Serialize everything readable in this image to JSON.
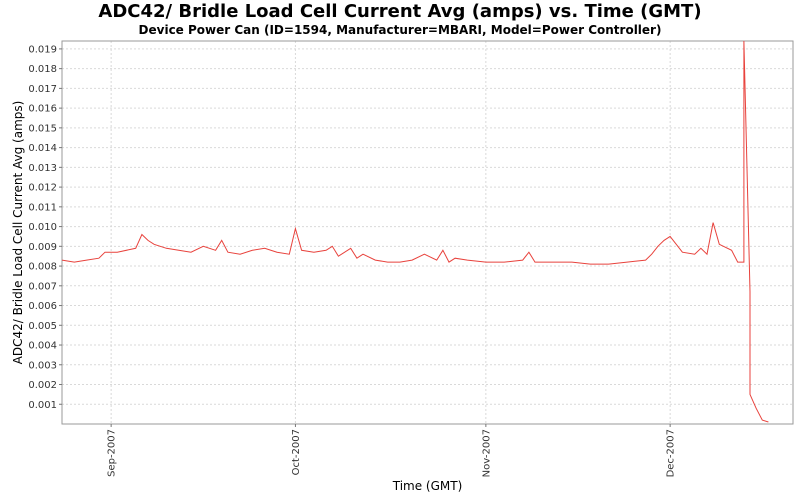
{
  "chart_data": {
    "type": "line",
    "title": "ADC42/ Bridle Load Cell Current Avg (amps) vs. Time (GMT)",
    "subtitle": "Device Power Can (ID=1594, Manufacturer=MBARI, Model=Power Controller)",
    "xlabel": "Time (GMT)",
    "ylabel": "ADC42/ Bridle Load Cell Current Avg (amps)",
    "x_tick_labels": [
      "Sep-2007",
      "Oct-2007",
      "Nov-2007",
      "Dec-2007"
    ],
    "x_tick_dates": [
      "2007-09-01",
      "2007-10-01",
      "2007-11-01",
      "2007-12-01"
    ],
    "xlim": [
      "2007-08-24",
      "2007-12-21"
    ],
    "y_tick_labels": [
      "0.001",
      "0.002",
      "0.003",
      "0.004",
      "0.005",
      "0.006",
      "0.007",
      "0.008",
      "0.009",
      "0.010",
      "0.011",
      "0.012",
      "0.013",
      "0.014",
      "0.015",
      "0.016",
      "0.017",
      "0.018",
      "0.019"
    ],
    "y_ticks": [
      0.001,
      0.002,
      0.003,
      0.004,
      0.005,
      0.006,
      0.007,
      0.008,
      0.009,
      0.01,
      0.011,
      0.012,
      0.013,
      0.014,
      0.015,
      0.016,
      0.017,
      0.018,
      0.019
    ],
    "ylim": [
      0.0,
      0.0194
    ],
    "grid": true,
    "line_color": "#e8423c",
    "series": [
      {
        "x": [
          "2007-08-24",
          "2007-08-26",
          "2007-08-28",
          "2007-08-30",
          "2007-08-31",
          "2007-09-02",
          "2007-09-05",
          "2007-09-06",
          "2007-09-07",
          "2007-09-08",
          "2007-09-10",
          "2007-09-12",
          "2007-09-14",
          "2007-09-16",
          "2007-09-18",
          "2007-09-19",
          "2007-09-20",
          "2007-09-22",
          "2007-09-24",
          "2007-09-26",
          "2007-09-28",
          "2007-09-30",
          "2007-10-01",
          "2007-10-02",
          "2007-10-04",
          "2007-10-06",
          "2007-10-07",
          "2007-10-08",
          "2007-10-10",
          "2007-10-11",
          "2007-10-12",
          "2007-10-14",
          "2007-10-16",
          "2007-10-18",
          "2007-10-20",
          "2007-10-22",
          "2007-10-24",
          "2007-10-25",
          "2007-10-26",
          "2007-10-27",
          "2007-10-29",
          "2007-11-01",
          "2007-11-04",
          "2007-11-07",
          "2007-11-08",
          "2007-11-09",
          "2007-11-12",
          "2007-11-15",
          "2007-11-18",
          "2007-11-21",
          "2007-11-24",
          "2007-11-27",
          "2007-11-28",
          "2007-11-29",
          "2007-11-30",
          "2007-12-01",
          "2007-12-03",
          "2007-12-05",
          "2007-12-06",
          "2007-12-07",
          "2007-12-08",
          "2007-12-09",
          "2007-12-11",
          "2007-12-12",
          "2007-12-13",
          "2007-12-13",
          "2007-12-14",
          "2007-12-14",
          "2007-12-14",
          "2007-12-15",
          "2007-12-16",
          "2007-12-17"
        ],
        "y": [
          0.0083,
          0.0082,
          0.0083,
          0.0084,
          0.0087,
          0.0087,
          0.0089,
          0.0096,
          0.0093,
          0.0091,
          0.0089,
          0.0088,
          0.0087,
          0.009,
          0.0088,
          0.0093,
          0.0087,
          0.0086,
          0.0088,
          0.0089,
          0.0087,
          0.0086,
          0.0099,
          0.0088,
          0.0087,
          0.0088,
          0.009,
          0.0085,
          0.0089,
          0.0084,
          0.0086,
          0.0083,
          0.0082,
          0.0082,
          0.0083,
          0.0086,
          0.0083,
          0.0088,
          0.0082,
          0.0084,
          0.0083,
          0.0082,
          0.0082,
          0.0083,
          0.0087,
          0.0082,
          0.0082,
          0.0082,
          0.0081,
          0.0081,
          0.0082,
          0.0083,
          0.0086,
          0.009,
          0.0093,
          0.0095,
          0.0087,
          0.0086,
          0.0089,
          0.0086,
          0.0102,
          0.0091,
          0.0088,
          0.0082,
          0.0082,
          0.0194,
          0.0067,
          0.004,
          0.0015,
          0.0008,
          0.0002,
          0.0001
        ]
      }
    ]
  }
}
